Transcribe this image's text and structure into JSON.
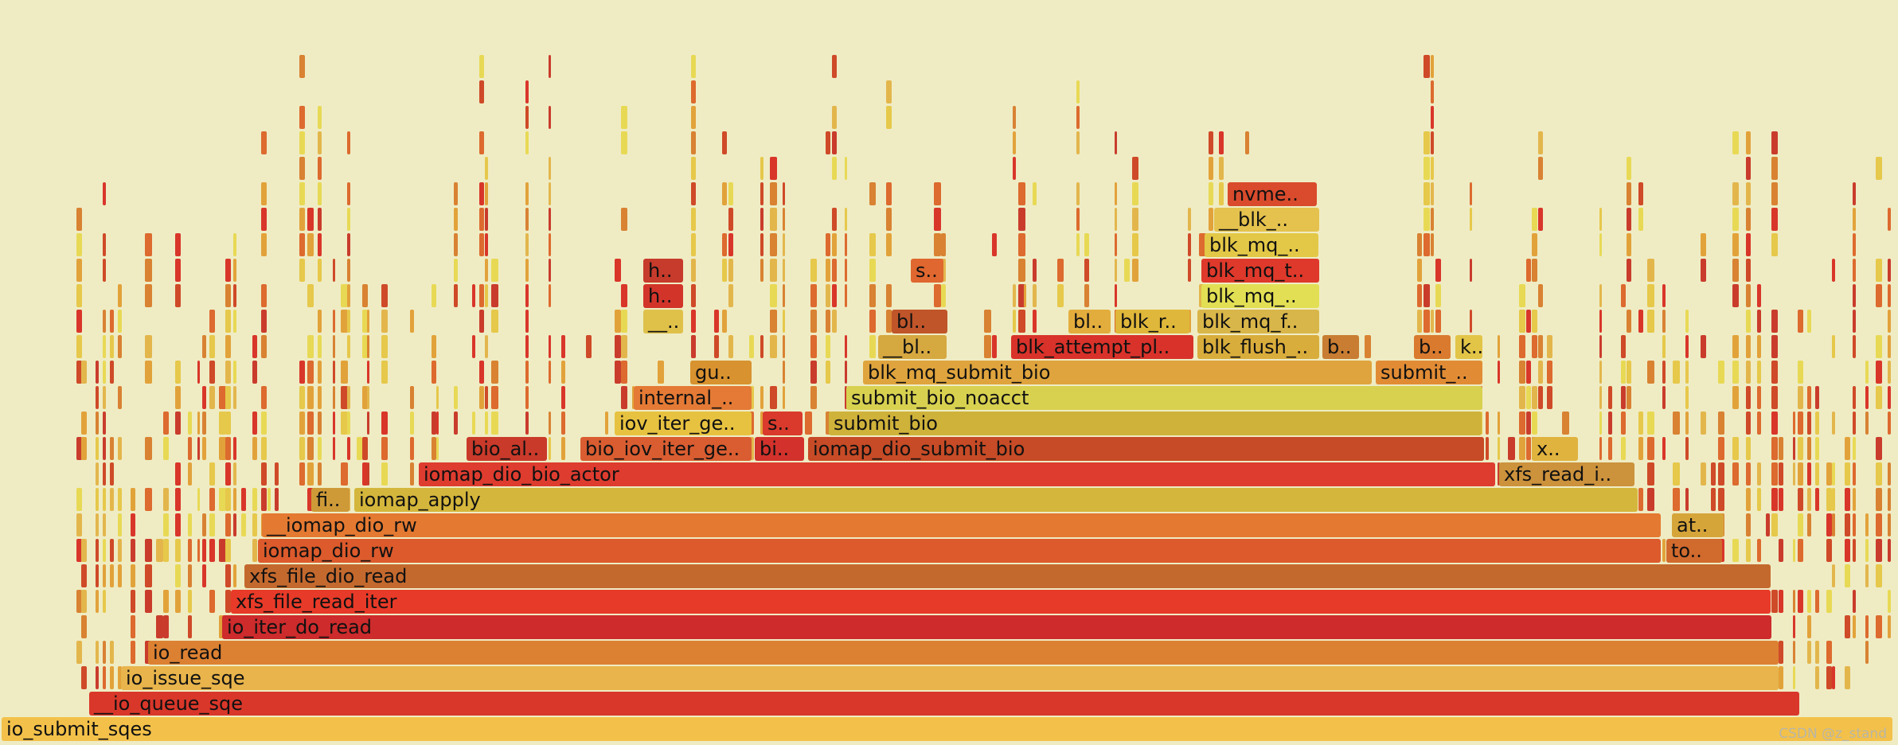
{
  "chart_data": {
    "type": "flame-graph",
    "title": "",
    "depth_unit": "stack level (0 = root at bottom)",
    "width_unit": "relative share of samples (root = 1.0)",
    "frames": [
      {
        "name": "io_submit_sqes",
        "depth": 0,
        "start": 0.0,
        "width": 0.997,
        "color": "#f3c14a"
      },
      {
        "name": "__io_queue_sqe",
        "depth": 1,
        "start": 0.046,
        "width": 0.902,
        "color": "#d9372a"
      },
      {
        "name": "io_issue_sqe",
        "depth": 2,
        "start": 0.063,
        "width": 0.874,
        "color": "#e8b44b"
      },
      {
        "name": "io_read",
        "depth": 3,
        "start": 0.077,
        "width": 0.86,
        "color": "#dc8032"
      },
      {
        "name": "io_iter_do_read",
        "depth": 4,
        "start": 0.116,
        "width": 0.817,
        "color": "#cd2b2c"
      },
      {
        "name": "xfs_file_read_iter",
        "depth": 5,
        "start": 0.121,
        "width": 0.812,
        "color": "#e83a28"
      },
      {
        "name": "xfs_file_dio_read",
        "depth": 6,
        "start": 0.128,
        "width": 0.805,
        "color": "#c4692e"
      },
      {
        "name": "iomap_dio_rw",
        "depth": 7,
        "start": 0.135,
        "width": 0.74,
        "color": "#dc5a2c"
      },
      {
        "name": "__iomap_dio_rw",
        "depth": 8,
        "start": 0.137,
        "width": 0.738,
        "color": "#e47931"
      },
      {
        "name": "iomap_apply",
        "depth": 9,
        "start": 0.186,
        "width": 0.677,
        "color": "#d4b63c"
      },
      {
        "name": "fi..",
        "depth": 9,
        "start": 0.163,
        "width": 0.021,
        "color": "#ce9a38"
      },
      {
        "name": "iomap_dio_bio_actor",
        "depth": 10,
        "start": 0.22,
        "width": 0.568,
        "color": "#de3c2f"
      },
      {
        "name": "xfs_read_i..",
        "depth": 10,
        "start": 0.789,
        "width": 0.072,
        "color": "#cc923c"
      },
      {
        "name": "bio_al..",
        "depth": 11,
        "start": 0.245,
        "width": 0.043,
        "color": "#c93a2a"
      },
      {
        "name": "bio_iov_iter_ge..",
        "depth": 11,
        "start": 0.305,
        "width": 0.091,
        "color": "#d95d31"
      },
      {
        "name": "bi..",
        "depth": 11,
        "start": 0.397,
        "width": 0.027,
        "color": "#d2322b"
      },
      {
        "name": "iomap_dio_submit_bio",
        "depth": 11,
        "start": 0.425,
        "width": 0.357,
        "color": "#c64b26"
      },
      {
        "name": "x..",
        "depth": 11,
        "start": 0.806,
        "width": 0.025,
        "color": "#e0b33f"
      },
      {
        "name": "at..",
        "depth": 8,
        "start": 0.88,
        "width": 0.028,
        "color": "#d6a53a"
      },
      {
        "name": "to..",
        "depth": 7,
        "start": 0.877,
        "width": 0.03,
        "color": "#d16a2d"
      },
      {
        "name": "iov_iter_ge..",
        "depth": 12,
        "start": 0.323,
        "width": 0.073,
        "color": "#e7c240"
      },
      {
        "name": "s..",
        "depth": 12,
        "start": 0.401,
        "width": 0.022,
        "color": "#d93a2c"
      },
      {
        "name": "submit_bio",
        "depth": 12,
        "start": 0.436,
        "width": 0.345,
        "color": "#cfb23a"
      },
      {
        "name": "internal_..",
        "depth": 13,
        "start": 0.333,
        "width": 0.063,
        "color": "#e47a35"
      },
      {
        "name": "submit_bio_noacct",
        "depth": 13,
        "start": 0.445,
        "width": 0.336,
        "color": "#d8d150"
      },
      {
        "name": "gu..",
        "depth": 14,
        "start": 0.363,
        "width": 0.033,
        "color": "#d8922f"
      },
      {
        "name": "blk_mq_submit_bio",
        "depth": 14,
        "start": 0.454,
        "width": 0.269,
        "color": "#dfa43d"
      },
      {
        "name": "submit_..",
        "depth": 14,
        "start": 0.724,
        "width": 0.057,
        "color": "#e18c35"
      },
      {
        "name": "__bl..",
        "depth": 15,
        "start": 0.462,
        "width": 0.037,
        "color": "#d6a840"
      },
      {
        "name": "blk_attempt_pl..",
        "depth": 15,
        "start": 0.532,
        "width": 0.097,
        "color": "#d8322a"
      },
      {
        "name": "blk_flush_..",
        "depth": 15,
        "start": 0.63,
        "width": 0.065,
        "color": "#d9ad3c"
      },
      {
        "name": "b..",
        "depth": 15,
        "start": 0.696,
        "width": 0.02,
        "color": "#c87d32"
      },
      {
        "name": "b..",
        "depth": 15,
        "start": 0.744,
        "width": 0.02,
        "color": "#d97a2e"
      },
      {
        "name": "k..",
        "depth": 15,
        "start": 0.766,
        "width": 0.015,
        "color": "#e2c447"
      },
      {
        "name": "bl..",
        "depth": 16,
        "start": 0.469,
        "width": 0.03,
        "color": "#c0552a"
      },
      {
        "name": "bl..",
        "depth": 16,
        "start": 0.562,
        "width": 0.023,
        "color": "#e3ad3d"
      },
      {
        "name": "blk_r..",
        "depth": 16,
        "start": 0.587,
        "width": 0.04,
        "color": "#dfb73a"
      },
      {
        "name": "blk_mq_f..",
        "depth": 16,
        "start": 0.63,
        "width": 0.065,
        "color": "#d9b649"
      },
      {
        "name": "h..",
        "depth": 17,
        "start": 0.338,
        "width": 0.022,
        "color": "#d2342a"
      },
      {
        "name": "h..",
        "depth": 18,
        "start": 0.338,
        "width": 0.022,
        "color": "#c63b2b"
      },
      {
        "name": "__..",
        "depth": 16,
        "start": 0.338,
        "width": 0.022,
        "color": "#dfc14a"
      },
      {
        "name": "s..",
        "depth": 18,
        "start": 0.479,
        "width": 0.018,
        "color": "#e0672f"
      },
      {
        "name": "blk_mq_..",
        "depth": 17,
        "start": 0.632,
        "width": 0.063,
        "color": "#e2df54"
      },
      {
        "name": "blk_mq_t..",
        "depth": 18,
        "start": 0.632,
        "width": 0.063,
        "color": "#de392b"
      },
      {
        "name": "blk_mq_..",
        "depth": 19,
        "start": 0.634,
        "width": 0.061,
        "color": "#e3c847"
      },
      {
        "name": "__blk_..",
        "depth": 20,
        "start": 0.639,
        "width": 0.056,
        "color": "#e4c24d"
      },
      {
        "name": "nvme..",
        "depth": 21,
        "start": 0.646,
        "width": 0.048,
        "color": "#d94b2c"
      }
    ]
  },
  "watermark": "CSDN @z_stand"
}
